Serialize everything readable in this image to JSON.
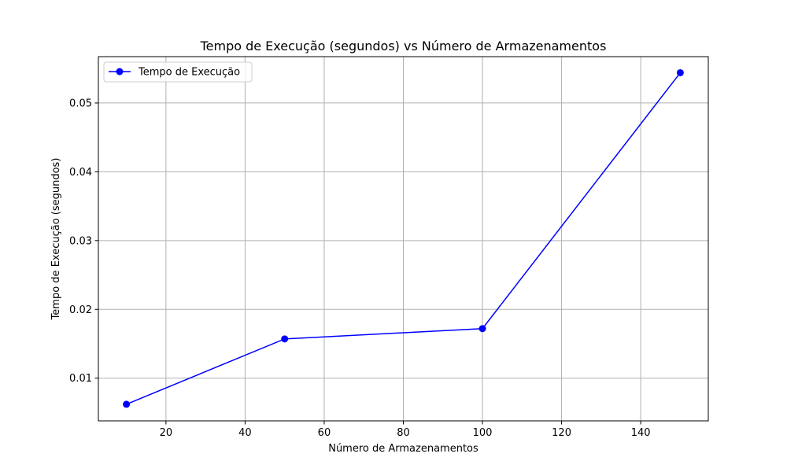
{
  "chart_data": {
    "type": "line",
    "title": "Tempo de Execução (segundos) vs Número de Armazenamentos",
    "xlabel": "Número de Armazenamentos",
    "ylabel": "Tempo de Execução (segundos)",
    "xlim": [
      2.917,
      157.083
    ],
    "ylim": [
      0.00379,
      0.05674
    ],
    "xticks": [
      20,
      40,
      60,
      80,
      100,
      120,
      140
    ],
    "yticks": [
      0.01,
      0.02,
      0.03,
      0.04,
      0.05
    ],
    "xtick_labels": [
      "20",
      "40",
      "60",
      "80",
      "100",
      "120",
      "140"
    ],
    "ytick_labels": [
      "0.01",
      "0.02",
      "0.03",
      "0.04",
      "0.05"
    ],
    "grid": true,
    "legend_position": "top-left",
    "series": [
      {
        "name": "Tempo de Execução",
        "color": "#0000ff",
        "marker": "circle",
        "x": [
          10,
          50,
          100,
          150
        ],
        "y": [
          0.0062,
          0.0157,
          0.0172,
          0.0544
        ]
      }
    ]
  }
}
